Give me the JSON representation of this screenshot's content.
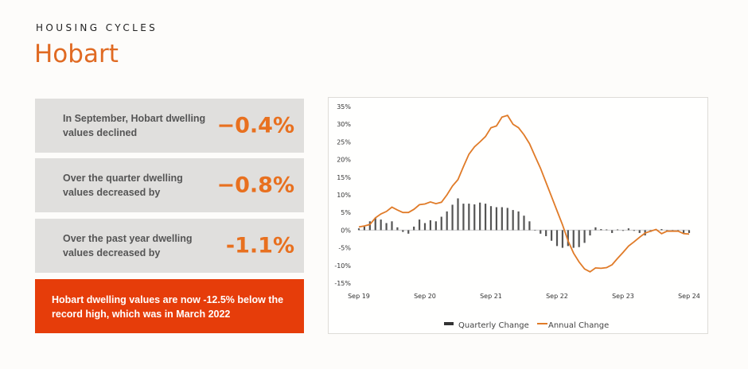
{
  "header": {
    "kicker": "HOUSING CYCLES",
    "title": "Hobart"
  },
  "stats": [
    {
      "label": "In September, Hobart dwelling values declined",
      "value": "−0.4%"
    },
    {
      "label": "Over the quarter dwelling values decreased by",
      "value": "−0.8%"
    },
    {
      "label": "Over the past year dwelling values decreased by",
      "value": "-1.1%"
    }
  ],
  "note": "Hobart dwelling values are now -12.5% below the record high, which was in March 2022",
  "colors": {
    "accent": "#e06a22",
    "note_bg": "#e63d0a",
    "bar": "#555555",
    "line": "#e07b28"
  },
  "chart_data": {
    "type": "bar+line",
    "ylim": [
      -15,
      35
    ],
    "yticks": [
      "35%",
      "30%",
      "25%",
      "20%",
      "15%",
      "10%",
      "5%",
      "0%",
      "-5%",
      "-10%",
      "-15%"
    ],
    "ytick_values": [
      35,
      30,
      25,
      20,
      15,
      10,
      5,
      0,
      -5,
      -10,
      -15
    ],
    "xticks": [
      "Sep 19",
      "Sep 20",
      "Sep 21",
      "Sep 22",
      "Sep 23",
      "Sep 24"
    ],
    "x_range": [
      "Sep 19",
      "Sep 24"
    ],
    "legend_position": "bottom",
    "series": [
      {
        "name": "Quarterly Change",
        "type": "bar",
        "values": [
          0.5,
          1,
          2.5,
          3.5,
          3,
          2,
          2.5,
          0.8,
          -0.5,
          -1,
          1,
          3,
          2,
          2.8,
          2.5,
          3.8,
          5.3,
          7.2,
          9,
          7.5,
          7.5,
          7.3,
          7.8,
          7.5,
          6.8,
          6.5,
          6.5,
          6.3,
          5.7,
          5.3,
          4.1,
          2.5,
          0,
          -1,
          -1.7,
          -3,
          -4.5,
          -5,
          -4.5,
          -5,
          -4.8,
          -3.6,
          -1.5,
          0.8,
          0.3,
          0.2,
          -0.8,
          0.2,
          -0.2,
          0.5,
          -0.2,
          -0.8,
          -1.5,
          -0.5,
          0.2,
          0.3,
          0,
          0,
          -0.1,
          -0.8,
          -0.8
        ]
      },
      {
        "name": "Annual Change",
        "type": "line",
        "values": [
          0.9,
          1.2,
          1.6,
          3.5,
          4.6,
          5.3,
          6.5,
          5.7,
          5,
          5,
          5.9,
          7.2,
          7.4,
          8,
          7.5,
          7.9,
          10,
          12.5,
          14.3,
          18,
          21.5,
          23.6,
          25,
          26.5,
          29,
          29.5,
          32,
          32.5,
          30,
          29,
          27,
          24.5,
          21,
          17.5,
          13.5,
          9.5,
          5.5,
          1.5,
          -3,
          -6.5,
          -9,
          -11,
          -11.8,
          -10.7,
          -10.8,
          -10.6,
          -9.8,
          -8,
          -6.3,
          -4.5,
          -3.3,
          -2,
          -0.8,
          -0.3,
          0.2,
          -1,
          -0.3,
          -0.3,
          -0.3,
          -1,
          -1.1
        ]
      }
    ]
  }
}
